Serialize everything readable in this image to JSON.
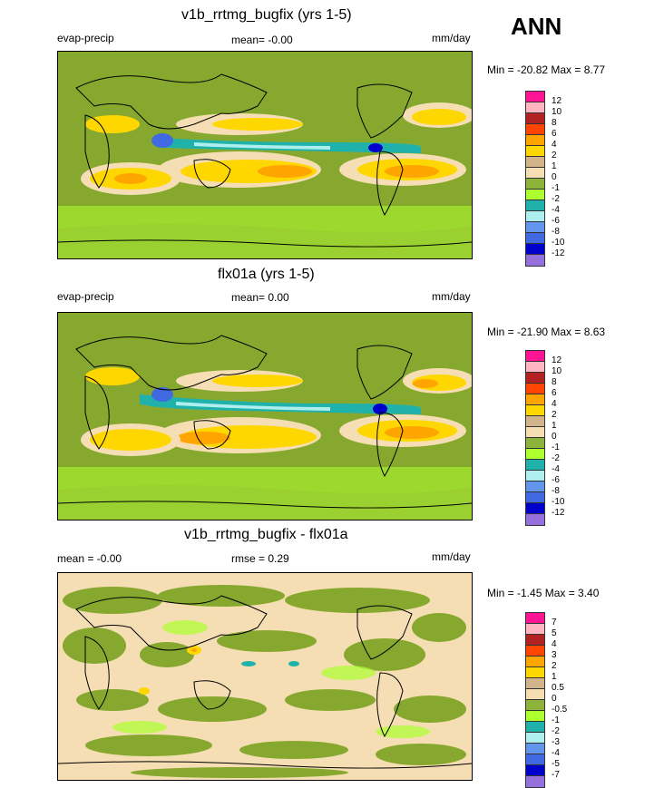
{
  "season": "ANN",
  "panels": [
    {
      "title": "v1b_rrtmg_bugfix (yrs 1-5)",
      "left_label": "evap-precip",
      "stat_label": "mean=  -0.00",
      "units": "mm/day",
      "minmax": "Min = -20.82 Max =   8.77",
      "colorbar": {
        "labels": [
          "12",
          "10",
          "8",
          "6",
          "4",
          "2",
          "1",
          "0",
          "-1",
          "-2",
          "-4",
          "-6",
          "-8",
          "-10",
          "-12"
        ],
        "colors": [
          "#ff1493",
          "#ffb6c1",
          "#b22222",
          "#ff4500",
          "#ffa500",
          "#ffd700",
          "#d2b48c",
          "#f5deb3",
          "#8db33a",
          "#adff2f",
          "#20b2aa",
          "#afeeee",
          "#6495ed",
          "#4169e1",
          "#0000cd",
          "#9370db"
        ]
      }
    },
    {
      "title": "flx01a (yrs 1-5)",
      "left_label": "evap-precip",
      "stat_label": "mean=   0.00",
      "units": "mm/day",
      "minmax": "Min = -21.90 Max =   8.63",
      "colorbar": {
        "labels": [
          "12",
          "10",
          "8",
          "6",
          "4",
          "2",
          "1",
          "0",
          "-1",
          "-2",
          "-4",
          "-6",
          "-8",
          "-10",
          "-12"
        ],
        "colors": [
          "#ff1493",
          "#ffb6c1",
          "#b22222",
          "#ff4500",
          "#ffa500",
          "#ffd700",
          "#d2b48c",
          "#f5deb3",
          "#8db33a",
          "#adff2f",
          "#20b2aa",
          "#afeeee",
          "#6495ed",
          "#4169e1",
          "#0000cd",
          "#9370db"
        ]
      }
    },
    {
      "title": "v1b_rrtmg_bugfix - flx01a",
      "left_label": "mean =  -0.00",
      "stat_label": "rmse =    0.29",
      "units": "mm/day",
      "minmax": "Min =  -1.45 Max =   3.40",
      "colorbar": {
        "labels": [
          "7",
          "5",
          "4",
          "3",
          "2",
          "1",
          "0.5",
          "0",
          "-0.5",
          "-1",
          "-2",
          "-3",
          "-4",
          "-5",
          "-7"
        ],
        "colors": [
          "#ff1493",
          "#ffb6c1",
          "#b22222",
          "#ff4500",
          "#ffa500",
          "#ffd700",
          "#d2b48c",
          "#f5deb3",
          "#8db33a",
          "#adff2f",
          "#20b2aa",
          "#afeeee",
          "#6495ed",
          "#4169e1",
          "#0000cd",
          "#9370db"
        ]
      }
    }
  ]
}
